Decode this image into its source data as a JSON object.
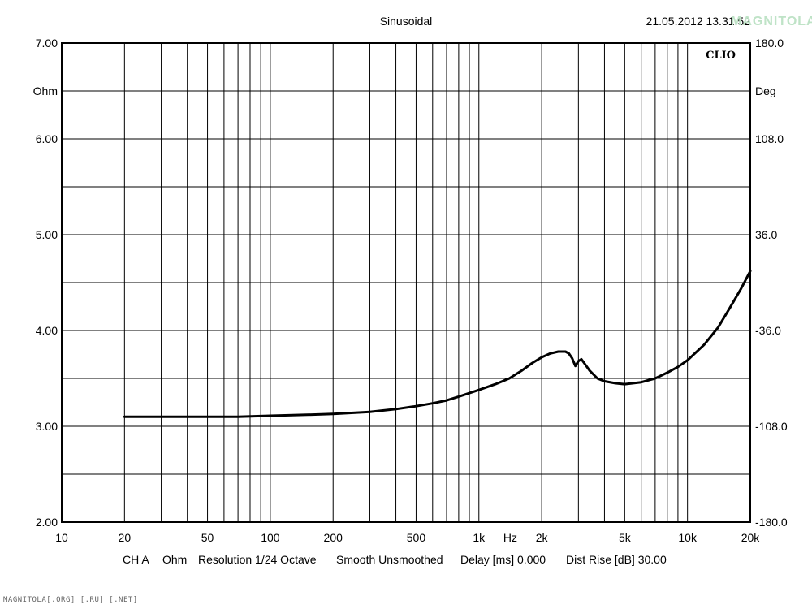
{
  "header": {
    "title": "Sinusoidal",
    "timestamp": "21.05.2012 13.31.52",
    "brand": "CLIO"
  },
  "footer": {
    "channel": "CH A",
    "unit": "Ohm",
    "resolution": "Resolution 1/24 Octave",
    "smoothing": "Smooth Unsmoothed",
    "delay": "Delay [ms] 0.000",
    "dist_rise": "Dist Rise [dB] 30.00"
  },
  "watermarks": {
    "logo": "MAGNITOLA",
    "footer": "MAGNITOLA[.ORG] [.RU] [.NET]"
  },
  "colors": {
    "curve": "#000000",
    "grid": "#000000",
    "background": "#ffffff"
  },
  "chart_data": {
    "type": "line",
    "x_scale": "log",
    "xlim": [
      10,
      20000
    ],
    "ylim": [
      2.0,
      7.0
    ],
    "y2lim": [
      -180.0,
      180.0
    ],
    "ylabel": "Ohm",
    "y2label": "Deg",
    "xlabel": "Hz",
    "grid": true,
    "x_tick_labels": [
      {
        "value": 10,
        "label": "10"
      },
      {
        "value": 20,
        "label": "20"
      },
      {
        "value": 50,
        "label": "50"
      },
      {
        "value": 100,
        "label": "100"
      },
      {
        "value": 200,
        "label": "200"
      },
      {
        "value": 500,
        "label": "500"
      },
      {
        "value": 1000,
        "label": "1k"
      },
      {
        "value": 2000,
        "label": "2k"
      },
      {
        "value": 5000,
        "label": "5k"
      },
      {
        "value": 10000,
        "label": "10k"
      },
      {
        "value": 20000,
        "label": "20k"
      }
    ],
    "x_unit_label_value": 1414,
    "y_tick_labels": [
      "2.00",
      "3.00",
      "4.00",
      "5.00",
      "6.00",
      "7.00"
    ],
    "y_tick_values": [
      2,
      3,
      4,
      5,
      6,
      7
    ],
    "y2_tick_labels": [
      "-180.0",
      "-108.0",
      "-36.0",
      "36.0",
      "108.0",
      "180.0"
    ],
    "series": [
      {
        "x": [
          20,
          30,
          50,
          70,
          100,
          150,
          200,
          300,
          400,
          500,
          600,
          700,
          800,
          1000,
          1200,
          1400,
          1600,
          1800,
          2000,
          2200,
          2400,
          2600,
          2700,
          2800,
          2900,
          3000,
          3100,
          3200,
          3400,
          3700,
          4000,
          4500,
          5000,
          5500,
          6000,
          7000,
          8000,
          9000,
          10000,
          12000,
          14000,
          16000,
          18000,
          20000
        ],
        "y": [
          3.1,
          3.1,
          3.1,
          3.1,
          3.11,
          3.12,
          3.13,
          3.15,
          3.18,
          3.21,
          3.24,
          3.27,
          3.31,
          3.38,
          3.44,
          3.5,
          3.58,
          3.66,
          3.72,
          3.76,
          3.78,
          3.78,
          3.76,
          3.71,
          3.63,
          3.68,
          3.7,
          3.66,
          3.58,
          3.5,
          3.47,
          3.45,
          3.44,
          3.45,
          3.46,
          3.5,
          3.56,
          3.62,
          3.69,
          3.85,
          4.03,
          4.24,
          4.43,
          4.62
        ]
      }
    ]
  }
}
